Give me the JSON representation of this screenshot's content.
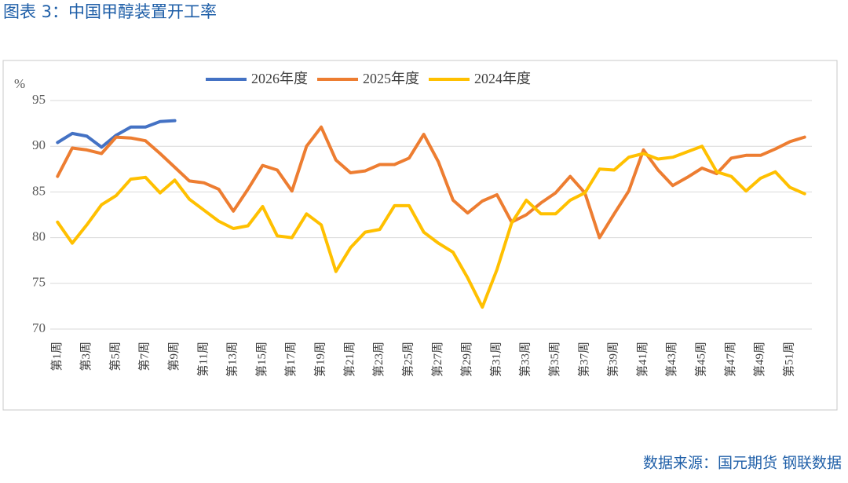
{
  "chart_data": {
    "type": "line",
    "title": "图表 3：中国甲醇装置开工率",
    "y_label": "%",
    "source": "数据来源：国元期货 钢联数据",
    "categories": [
      "第1周",
      null,
      "第3周",
      null,
      "第5周",
      null,
      "第7周",
      null,
      "第9周",
      null,
      "第11周",
      null,
      "第13周",
      null,
      "第15周",
      null,
      "第17周",
      null,
      "第19周",
      null,
      "第21周",
      null,
      "第23周",
      null,
      "第25周",
      null,
      "第27周",
      null,
      "第29周",
      null,
      "第31周",
      null,
      "第33周",
      null,
      "第35周",
      null,
      "第37周",
      null,
      "第39周",
      null,
      "第41周",
      null,
      "第43周",
      null,
      "第45周",
      null,
      "第47周",
      null,
      "第49周",
      null,
      "第51周",
      null
    ],
    "ylim": [
      70,
      95
    ],
    "yticks": [
      70,
      75,
      80,
      85,
      90,
      95
    ],
    "grid": true,
    "legend": "top",
    "series": [
      {
        "name": "2026年度",
        "color": "#4472c4",
        "values": [
          90.4,
          91.4,
          91.1,
          89.9,
          91.2,
          92.1,
          92.1,
          92.7,
          92.8,
          null,
          null,
          null,
          null,
          null,
          null,
          null,
          null,
          null,
          null,
          null,
          null,
          null,
          null,
          null,
          null,
          null,
          null,
          null,
          null,
          null,
          null,
          null,
          null,
          null,
          null,
          null,
          null,
          null,
          null,
          null,
          null,
          null,
          null,
          null,
          null,
          null,
          null,
          null,
          null,
          null,
          null,
          null
        ]
      },
      {
        "name": "2025年度",
        "color": "#ed7d31",
        "values": [
          86.7,
          89.8,
          89.6,
          89.2,
          91.0,
          90.9,
          90.6,
          89.2,
          87.7,
          86.2,
          86.0,
          85.3,
          82.9,
          85.3,
          87.9,
          87.4,
          85.1,
          90.0,
          92.1,
          88.5,
          87.1,
          87.3,
          88.0,
          88.0,
          88.7,
          91.3,
          88.3,
          84.1,
          82.7,
          84.0,
          84.7,
          81.7,
          82.5,
          83.8,
          84.9,
          86.7,
          84.9,
          80.0,
          82.6,
          85.1,
          89.6,
          87.4,
          85.7,
          86.6,
          87.6,
          87.0,
          88.7,
          89.0,
          89.0,
          89.7,
          90.5,
          91.0
        ]
      },
      {
        "name": "2024年度",
        "color": "#ffc000",
        "values": [
          81.7,
          79.4,
          81.4,
          83.6,
          84.6,
          86.4,
          86.6,
          84.9,
          86.3,
          84.2,
          83.0,
          81.8,
          81.0,
          81.3,
          83.4,
          80.2,
          80.0,
          82.6,
          81.4,
          76.3,
          78.9,
          80.6,
          80.9,
          83.5,
          83.5,
          80.6,
          79.4,
          78.4,
          75.6,
          72.4,
          76.5,
          81.6,
          84.1,
          82.6,
          82.6,
          84.1,
          84.9,
          87.5,
          87.4,
          88.8,
          89.2,
          88.6,
          88.8,
          89.4,
          90.0,
          87.2,
          86.7,
          85.1,
          86.5,
          87.2,
          85.5,
          84.8
        ]
      }
    ]
  }
}
